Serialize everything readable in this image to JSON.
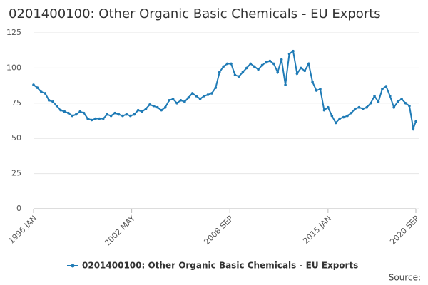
{
  "chart_data": {
    "type": "line",
    "title": "0201400100: Other Organic Basic Chemicals - EU Exports",
    "source": "Source:",
    "x": [
      1996,
      1996.25,
      1996.5,
      1996.75,
      1997,
      1997.25,
      1997.5,
      1997.75,
      1998,
      1998.25,
      1998.5,
      1998.75,
      1999,
      1999.25,
      1999.5,
      1999.75,
      2000,
      2000.25,
      2000.5,
      2000.75,
      2001,
      2001.25,
      2001.5,
      2001.75,
      2002,
      2002.25,
      2002.5,
      2002.75,
      2003,
      2003.25,
      2003.5,
      2003.75,
      2004,
      2004.25,
      2004.5,
      2004.75,
      2005,
      2005.25,
      2005.5,
      2005.75,
      2006,
      2006.25,
      2006.5,
      2006.75,
      2007,
      2007.25,
      2007.5,
      2007.75,
      2008,
      2008.25,
      2008.5,
      2008.75,
      2009,
      2009.25,
      2009.5,
      2009.75,
      2010,
      2010.25,
      2010.5,
      2010.75,
      2011,
      2011.25,
      2011.5,
      2011.75,
      2012,
      2012.25,
      2012.5,
      2012.75,
      2013,
      2013.25,
      2013.5,
      2013.75,
      2014,
      2014.25,
      2014.5,
      2014.75,
      2015,
      2015.25,
      2015.5,
      2015.75,
      2016,
      2016.25,
      2016.5,
      2016.75,
      2017,
      2017.25,
      2017.5,
      2017.75,
      2018,
      2018.25,
      2018.5,
      2018.75,
      2019,
      2019.25,
      2019.5,
      2019.75,
      2020,
      2020.25,
      2020.5,
      2020.667
    ],
    "series": [
      {
        "name": "0201400100: Other Organic Basic Chemicals - EU Exports",
        "color": "#1f7bb6",
        "values": [
          88,
          86,
          83,
          82,
          77,
          76,
          73,
          70,
          69,
          68,
          66,
          67,
          69,
          68,
          64,
          63,
          64,
          64,
          64,
          67,
          66,
          68,
          67,
          66,
          67,
          66,
          67,
          70,
          69,
          71,
          74,
          73,
          72,
          70,
          72,
          77,
          78,
          75,
          77,
          76,
          79,
          82,
          80,
          78,
          80,
          81,
          82,
          86,
          97,
          101,
          103,
          103,
          95,
          94,
          97,
          100,
          103,
          101,
          99,
          102,
          104,
          105,
          103,
          97,
          106,
          88,
          110,
          112,
          96,
          100,
          98,
          103,
          90,
          84,
          85,
          70,
          72,
          66,
          61,
          64,
          65,
          66,
          68,
          71,
          72,
          71,
          72,
          75,
          80,
          76,
          85,
          87,
          80,
          72,
          76,
          78,
          75,
          73,
          57,
          62
        ]
      }
    ],
    "xlim": [
      1996,
      2020.667
    ],
    "xticks": [
      {
        "value": 1996,
        "label": "1996 JAN"
      },
      {
        "value": 2002.333,
        "label": "2002 MAY"
      },
      {
        "value": 2008.667,
        "label": "2008 SEP"
      },
      {
        "value": 2015,
        "label": "2015 JAN"
      },
      {
        "value": 2020.667,
        "label": "2020 SEP"
      }
    ],
    "ylim": [
      0,
      125
    ],
    "yticks": [
      0,
      25,
      50,
      75,
      100,
      125
    ],
    "grid": true
  }
}
